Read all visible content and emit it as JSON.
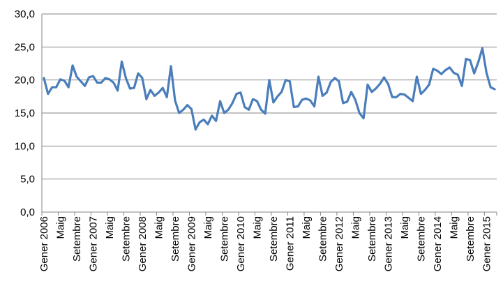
{
  "chart_data": {
    "type": "line",
    "title": "",
    "xlabel": "",
    "ylabel": "",
    "ylim": [
      0,
      30
    ],
    "y_ticks": [
      "0,0",
      "5,0",
      "10,0",
      "15,0",
      "20,0",
      "25,0",
      "30,0"
    ],
    "grid": "horizontal",
    "legend": "none",
    "x_tick_labels": [
      "Gener 2006",
      "Maig",
      "Setembre",
      "Gener 2007",
      "Maig",
      "Setembre",
      "Gener 2008",
      "Maig",
      "Setembre",
      "Gener 2009",
      "Maig",
      "Setembre",
      "Gener 2010",
      "Maig",
      "Setembre",
      "Gener 2011",
      "Maig",
      "Setembre",
      "Gener 2012",
      "Maig",
      "Setembre",
      "Gener 2013",
      "Maig",
      "Setembre",
      "Gener 2014",
      "Maig",
      "Setembre",
      "Gener 2015"
    ],
    "colors": {
      "line": "#4a7ebb",
      "grid": "#868686",
      "axis": "#868686"
    },
    "series": [
      {
        "values": [
          20.3,
          17.9,
          18.9,
          18.9,
          20.1,
          19.9,
          18.9,
          22.2,
          20.5,
          19.8,
          19.1,
          20.4,
          20.6,
          19.6,
          19.6,
          20.3,
          20.1,
          19.6,
          18.4,
          22.8,
          20.3,
          18.7,
          18.8,
          21.0,
          20.3,
          17.1,
          18.5,
          17.6,
          18.1,
          18.8,
          17.4,
          22.1,
          16.9,
          15.0,
          15.5,
          16.2,
          15.6,
          12.5,
          13.6,
          14.0,
          13.3,
          14.6,
          13.8,
          16.8,
          15.0,
          15.5,
          16.5,
          17.9,
          18.1,
          15.9,
          15.5,
          17.1,
          16.8,
          15.5,
          14.9,
          20.0,
          16.6,
          17.5,
          18.2,
          20.0,
          19.8,
          15.9,
          16.0,
          17.0,
          17.2,
          16.9,
          16.0,
          20.5,
          17.6,
          18.1,
          19.7,
          20.3,
          19.8,
          16.5,
          16.7,
          18.2,
          17.0,
          15.0,
          14.2,
          19.3,
          18.2,
          18.7,
          19.4,
          20.4,
          19.4,
          17.4,
          17.4,
          17.9,
          17.8,
          17.3,
          16.8,
          20.5,
          17.9,
          18.5,
          19.3,
          21.7,
          21.4,
          20.9,
          21.5,
          21.9,
          21.1,
          20.8,
          19.1,
          23.2,
          23.0,
          21.0,
          22.7,
          24.8,
          21.1,
          18.9,
          18.6
        ]
      }
    ]
  }
}
